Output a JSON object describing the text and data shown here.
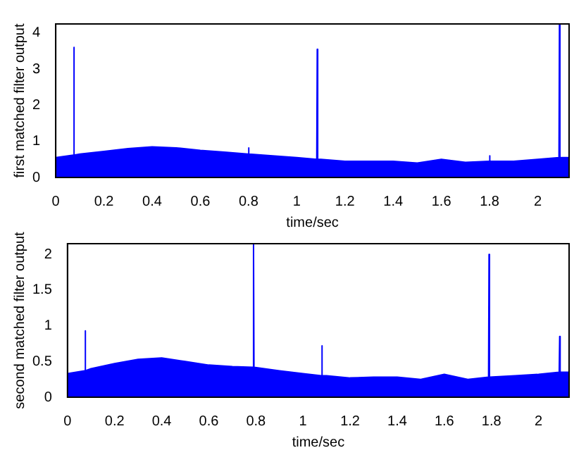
{
  "chart_data": [
    {
      "type": "area",
      "xlabel": "time/sec",
      "ylabel": "first matched filter output",
      "x": [
        0,
        0.073,
        0.075,
        0.077,
        0.1,
        0.2,
        0.3,
        0.4,
        0.5,
        0.6,
        0.7,
        0.798,
        0.8,
        0.802,
        0.9,
        1.0,
        1.083,
        1.085,
        1.087,
        1.1,
        1.2,
        1.3,
        1.4,
        1.5,
        1.6,
        1.7,
        1.798,
        1.8,
        1.802,
        1.9,
        2.0,
        2.088,
        2.09,
        2.092,
        2.13
      ],
      "series": [
        {
          "color": "#0000ff",
          "values": [
            0.55,
            0.62,
            3.6,
            0.62,
            0.65,
            0.72,
            0.8,
            0.85,
            0.82,
            0.75,
            0.7,
            0.65,
            0.82,
            0.65,
            0.6,
            0.55,
            0.5,
            3.55,
            0.5,
            0.5,
            0.45,
            0.45,
            0.45,
            0.4,
            0.5,
            0.42,
            0.45,
            0.6,
            0.45,
            0.45,
            0.5,
            0.55,
            4.25,
            0.55,
            0.55
          ]
        }
      ],
      "xlim": [
        0,
        2.13
      ],
      "ylim": [
        0,
        4.25
      ],
      "xticks": [
        0,
        0.2,
        0.4,
        0.6,
        0.8,
        1,
        1.2,
        1.4,
        1.6,
        1.8,
        2
      ],
      "yticks": [
        0,
        1,
        2,
        3,
        4
      ],
      "grid": false
    },
    {
      "type": "area",
      "xlabel": "time/sec",
      "ylabel": "second matched filter output",
      "x": [
        0,
        0.073,
        0.075,
        0.077,
        0.1,
        0.2,
        0.3,
        0.4,
        0.5,
        0.6,
        0.7,
        0.788,
        0.79,
        0.792,
        0.9,
        1.0,
        1.078,
        1.08,
        1.082,
        1.1,
        1.2,
        1.3,
        1.4,
        1.5,
        1.6,
        1.7,
        1.788,
        1.79,
        1.792,
        1.9,
        2.0,
        2.088,
        2.09,
        2.092,
        2.13
      ],
      "series": [
        {
          "color": "#0000ff",
          "values": [
            0.33,
            0.37,
            0.93,
            0.37,
            0.4,
            0.47,
            0.53,
            0.55,
            0.5,
            0.45,
            0.43,
            0.42,
            2.15,
            0.42,
            0.37,
            0.33,
            0.3,
            0.72,
            0.3,
            0.3,
            0.27,
            0.28,
            0.28,
            0.25,
            0.32,
            0.25,
            0.28,
            2.0,
            0.28,
            0.3,
            0.32,
            0.35,
            0.85,
            0.35,
            0.35
          ]
        }
      ],
      "xlim": [
        0,
        2.13
      ],
      "ylim": [
        0,
        2.15
      ],
      "xticks": [
        0,
        0.2,
        0.4,
        0.6,
        0.8,
        1,
        1.2,
        1.4,
        1.6,
        1.8,
        2
      ],
      "yticks": [
        0,
        0.5,
        1,
        1.5,
        2
      ],
      "grid": false
    }
  ]
}
